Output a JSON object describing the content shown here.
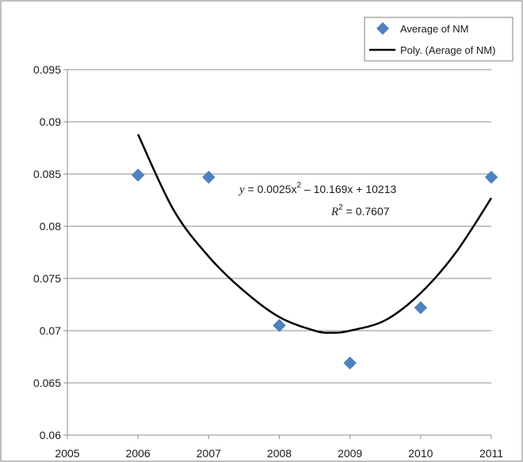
{
  "chart_data": {
    "type": "scatter",
    "x": [
      2006,
      2007,
      2008,
      2009,
      2010,
      2011
    ],
    "series": [
      {
        "name": "Average of NM",
        "marker": "diamond",
        "color": "#4f81bd",
        "values": [
          0.0849,
          0.0847,
          0.0705,
          0.0669,
          0.0722,
          0.0847
        ]
      }
    ],
    "trendline": {
      "name": "Poly. (Aerage of NM)",
      "kind": "polynomial",
      "order": 2,
      "color": "#000000",
      "points": [
        [
          2006.0,
          0.0888
        ],
        [
          2006.5,
          0.0816
        ],
        [
          2007.0,
          0.0771
        ],
        [
          2007.5,
          0.0738
        ],
        [
          2008.0,
          0.0713
        ],
        [
          2008.5,
          0.07
        ],
        [
          2008.75,
          0.0698
        ],
        [
          2009.0,
          0.07
        ],
        [
          2009.5,
          0.071
        ],
        [
          2010.0,
          0.0736
        ],
        [
          2010.5,
          0.0775
        ],
        [
          2011.0,
          0.0827
        ]
      ],
      "equation": {
        "y_var": "y",
        "rhs_a": " = 0.0025x",
        "exp": "2",
        "rhs_b": " – 10.169x + 10213",
        "r2_var": "R",
        "r2_exp": "2",
        "r2_value": " = 0.7607"
      }
    },
    "xlim": [
      2005,
      2011
    ],
    "ylim": [
      0.06,
      0.095
    ],
    "x_ticks": [
      "2005",
      "2006",
      "2007",
      "2008",
      "2009",
      "2010",
      "2011"
    ],
    "y_ticks": [
      "0.06",
      "0.065",
      "0.07",
      "0.075",
      "0.08",
      "0.085",
      "0.09",
      "0.095"
    ],
    "grid": "horizontal",
    "legend_position": "top-right",
    "title": "",
    "xlabel": "",
    "ylabel": ""
  }
}
